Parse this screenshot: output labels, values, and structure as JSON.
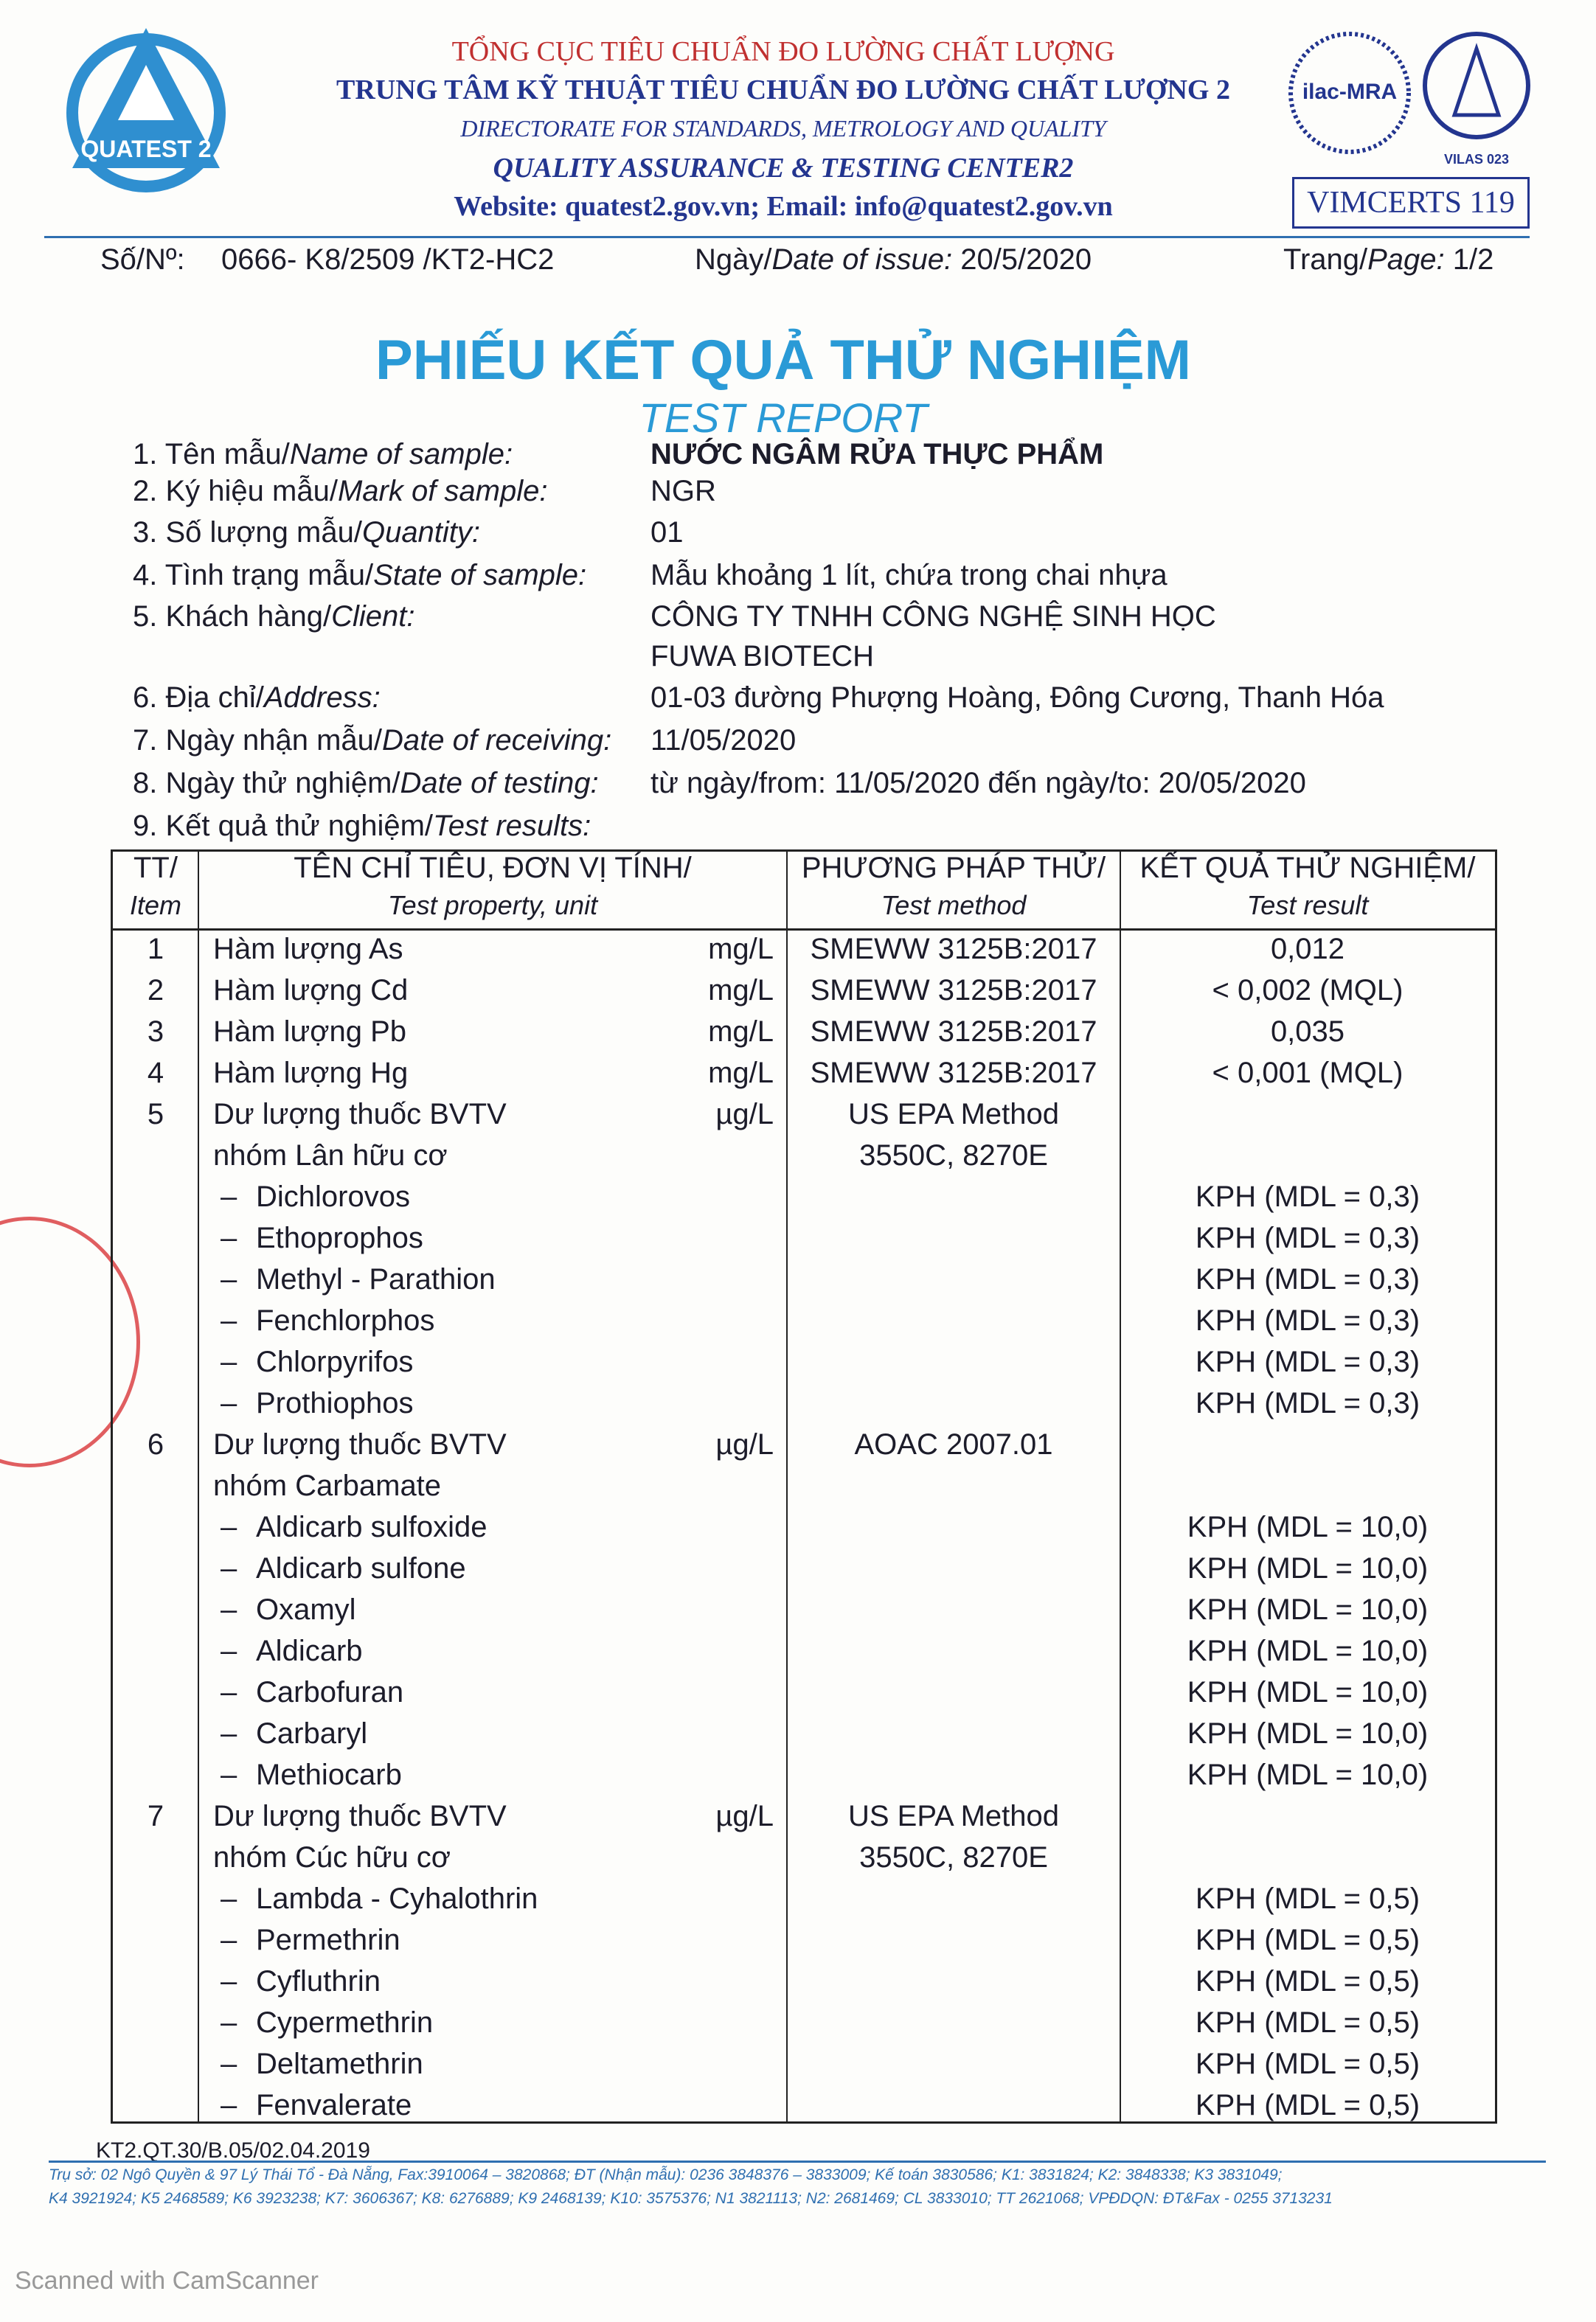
{
  "header": {
    "logo_text": "QUATEST 2",
    "lines": [
      "TỔNG CỤC TIÊU CHUẨN ĐO LƯỜNG CHẤT LƯỢNG",
      "TRUNG TÂM KỸ THUẬT TIÊU CHUẨN ĐO LƯỜNG CHẤT LƯỢNG 2",
      "DIRECTORATE FOR STANDARDS, METROLOGY AND QUALITY",
      "QUALITY ASSURANCE & TESTING CENTER2",
      "Website: quatest2.gov.vn; Email: info@quatest2.gov.vn"
    ],
    "ilac": "ilac-MRA",
    "vilas": "VILAS 023",
    "vimcerts": "VIMCERTS 119"
  },
  "meta": {
    "number_label": "Số/Nº:",
    "number": "0666- K8/2509 /KT2-HC2",
    "date_label_vi": "Ngày/",
    "date_label_en": "Date of issue:",
    "date": "20/5/2020",
    "page_label_vi": "Trang/",
    "page_label_en": "Page:",
    "page": "1/2"
  },
  "title": "PHIẾU KẾT QUẢ THỬ NGHIỆM",
  "subtitle": "TEST REPORT",
  "fields": [
    {
      "num": "1.",
      "vi": "Tên mẫu/",
      "en": "Name of sample:",
      "value": [
        "NƯỚC NGÂM RỬA THỰC PHẨM"
      ]
    },
    {
      "num": "2.",
      "vi": "Ký hiệu mẫu/",
      "en": "Mark of sample:",
      "value": [
        "NGR"
      ]
    },
    {
      "num": "3.",
      "vi": "Số lượng mẫu/",
      "en": "Quantity:",
      "value": [
        "01"
      ]
    },
    {
      "num": "4.",
      "vi": "Tình trạng mẫu/",
      "en": "State of sample:",
      "value": [
        "Mẫu khoảng 1 lít, chứa trong chai nhựa"
      ]
    },
    {
      "num": "5.",
      "vi": "Khách hàng/",
      "en": "Client:",
      "value": [
        "CÔNG TY TNHH CÔNG NGHỆ SINH HỌC",
        "FUWA BIOTECH"
      ]
    },
    {
      "num": "6.",
      "vi": "Địa chỉ/",
      "en": "Address:",
      "value": [
        "01-03 đường Phượng Hoàng, Đông Cương, Thanh Hóa"
      ]
    },
    {
      "num": "7.",
      "vi": "Ngày nhận mẫu/",
      "en": "Date of receiving:",
      "value": [
        "11/05/2020"
      ]
    },
    {
      "num": "8.",
      "vi": "Ngày thử nghiệm/",
      "en": "Date of testing:",
      "value": [
        "từ ngày/from: 11/05/2020 đến ngày/to: 20/05/2020"
      ]
    },
    {
      "num": "9.",
      "vi": "Kết quả thử nghiệm/",
      "en": "Test results:",
      "value": []
    }
  ],
  "table": {
    "headers": [
      [
        "TT/",
        "Item"
      ],
      [
        "TÊN CHỈ TIÊU, ĐƠN VỊ TÍNH/",
        "Test property, unit"
      ],
      [
        "PHƯƠNG PHÁP THỬ/",
        "Test method"
      ],
      [
        "KẾT QUẢ THỬ NGHIỆM/",
        "Test result"
      ]
    ],
    "rows": [
      {
        "no": "1",
        "name": [
          "Hàm lượng As"
        ],
        "unit": "mg/L",
        "method": [
          "SMEWW 3125B:2017"
        ],
        "result": "0,012",
        "subs": []
      },
      {
        "no": "2",
        "name": [
          "Hàm lượng Cd"
        ],
        "unit": "mg/L",
        "method": [
          "SMEWW 3125B:2017"
        ],
        "result": "< 0,002 (MQL)",
        "subs": []
      },
      {
        "no": "3",
        "name": [
          "Hàm lượng Pb"
        ],
        "unit": "mg/L",
        "method": [
          "SMEWW 3125B:2017"
        ],
        "result": "0,035",
        "subs": []
      },
      {
        "no": "4",
        "name": [
          "Hàm lượng Hg"
        ],
        "unit": "mg/L",
        "method": [
          "SMEWW 3125B:2017"
        ],
        "result": "< 0,001 (MQL)",
        "subs": []
      },
      {
        "no": "5",
        "name": [
          "Dư lượng thuốc BVTV",
          "nhóm Lân hữu cơ"
        ],
        "unit": "µg/L",
        "method": [
          "US EPA Method",
          "3550C, 8270E"
        ],
        "result": null,
        "subs": [
          {
            "name": "Dichlorovos",
            "result": "KPH (MDL = 0,3)"
          },
          {
            "name": "Ethoprophos",
            "result": "KPH (MDL = 0,3)"
          },
          {
            "name": "Methyl - Parathion",
            "result": "KPH (MDL = 0,3)"
          },
          {
            "name": "Fenchlorphos",
            "result": "KPH (MDL = 0,3)"
          },
          {
            "name": "Chlorpyrifos",
            "result": "KPH (MDL = 0,3)"
          },
          {
            "name": "Prothiophos",
            "result": "KPH (MDL = 0,3)"
          }
        ]
      },
      {
        "no": "6",
        "name": [
          "Dư lượng thuốc BVTV",
          "nhóm Carbamate"
        ],
        "unit": "µg/L",
        "method": [
          "AOAC 2007.01"
        ],
        "result": null,
        "subs": [
          {
            "name": "Aldicarb sulfoxide",
            "result": "KPH (MDL = 10,0)"
          },
          {
            "name": "Aldicarb sulfone",
            "result": "KPH (MDL = 10,0)"
          },
          {
            "name": "Oxamyl",
            "result": "KPH (MDL = 10,0)"
          },
          {
            "name": "Aldicarb",
            "result": "KPH (MDL = 10,0)"
          },
          {
            "name": "Carbofuran",
            "result": "KPH (MDL = 10,0)"
          },
          {
            "name": "Carbaryl",
            "result": "KPH (MDL = 10,0)"
          },
          {
            "name": "Methiocarb",
            "result": "KPH (MDL = 10,0)"
          }
        ]
      },
      {
        "no": "7",
        "name": [
          "Dư lượng thuốc BVTV",
          "nhóm Cúc hữu cơ"
        ],
        "unit": "µg/L",
        "method": [
          "US EPA Method",
          "3550C, 8270E"
        ],
        "result": null,
        "subs": [
          {
            "name": "Lambda - Cyhalothrin",
            "result": "KPH (MDL = 0,5)"
          },
          {
            "name": "Permethrin",
            "result": "KPH (MDL = 0,5)"
          },
          {
            "name": "Cyfluthrin",
            "result": "KPH (MDL = 0,5)"
          },
          {
            "name": "Cypermethrin",
            "result": "KPH (MDL = 0,5)"
          },
          {
            "name": "Deltamethrin",
            "result": "KPH (MDL = 0,5)"
          },
          {
            "name": "Fenvalerate",
            "result": "KPH (MDL = 0,5)"
          }
        ]
      }
    ]
  },
  "footer": {
    "form_code": "KT2.QT.30/B.05/02.04.2019",
    "address": [
      "Trụ sở: 02 Ngô Quyền & 97 Lý Thái Tổ - Đà Nẵng, Fax:3910064 – 3820868; ĐT (Nhận mẫu): 0236 3848376 – 3833009; Kế toán 3830586; K1: 3831824; K2: 3848338; K3 3831049;",
      "K4 3921924; K5 2468589; K6 3923238; K7: 3606367; K8: 6276889; K9 2468139; K10: 3575376; N1 3821113; N2: 2681469; CL 3833010; TT 2621068; VPĐDQN: ĐT&Fax - 0255 3713231"
    ],
    "scanner": "Scanned with CamScanner"
  }
}
